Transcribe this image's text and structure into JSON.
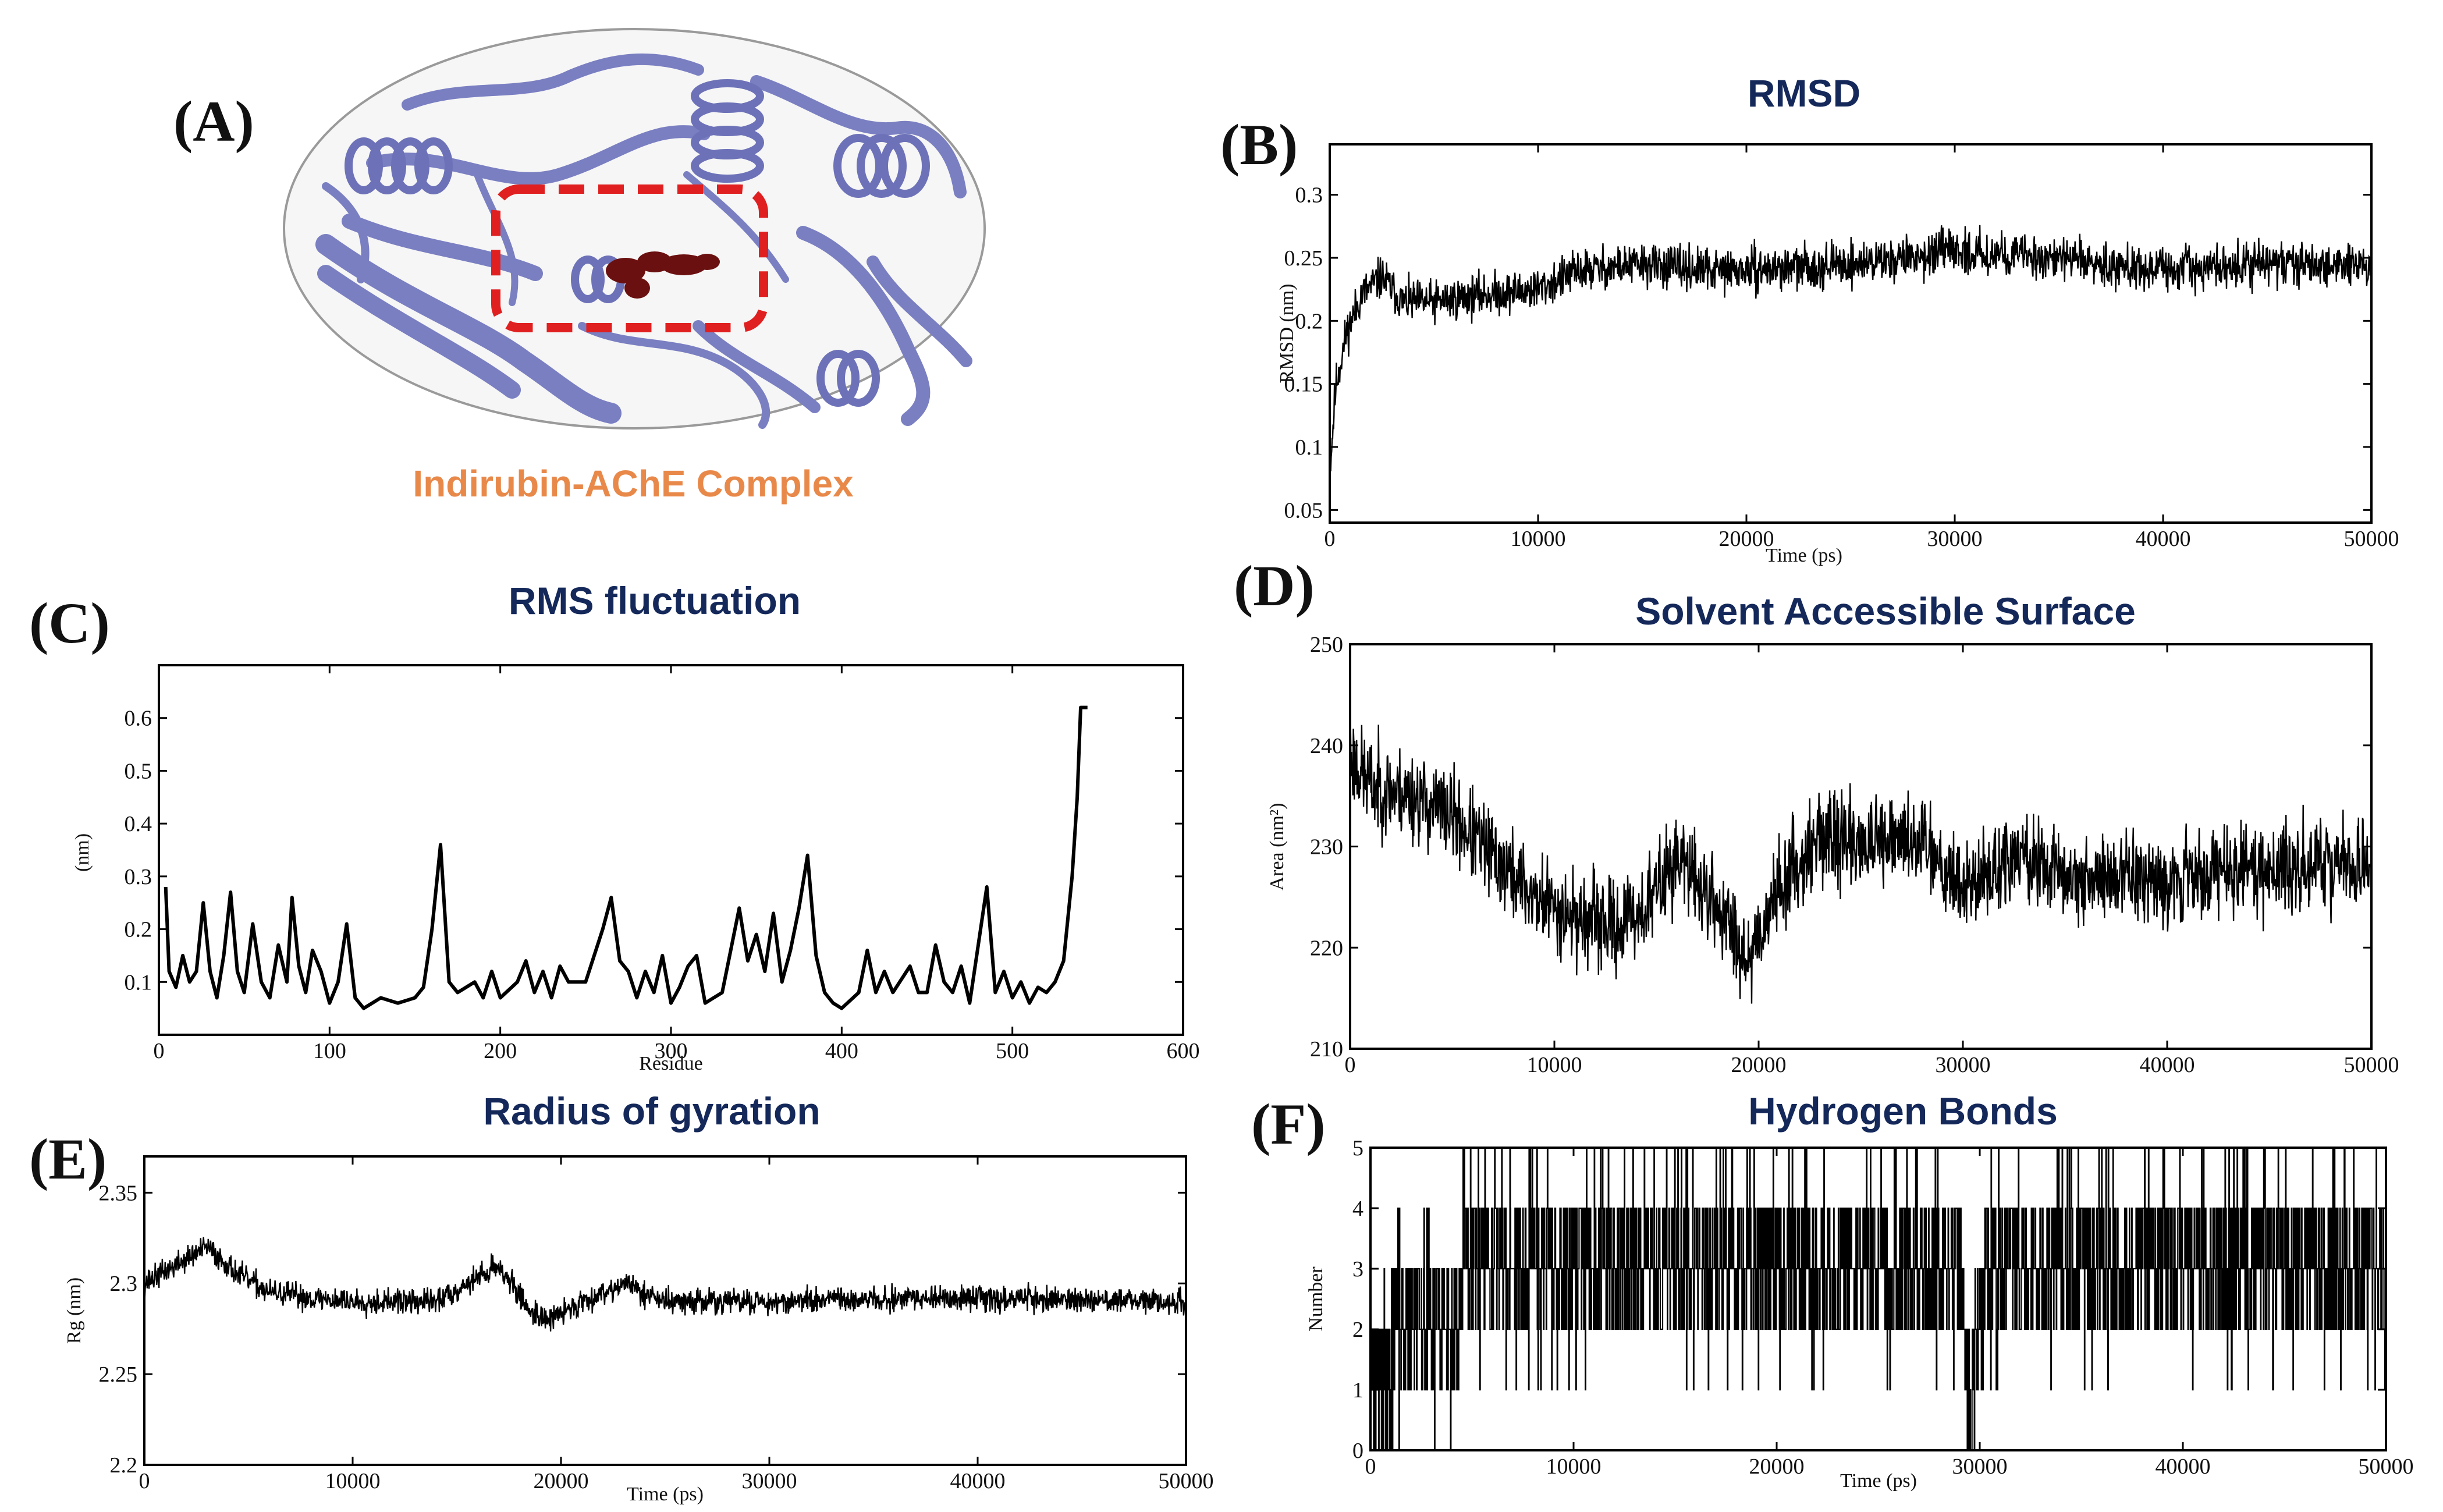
{
  "figure": {
    "panel_a": {
      "letter": "(A)",
      "caption": "Indirubin-AChE  Complex",
      "colors": {
        "protein": "#7a7fc2",
        "ligand": "#6b1010",
        "box": "#e02020",
        "caption": "#e8894a"
      }
    }
  },
  "chart_data": [
    {
      "id": "B",
      "letter": "(B)",
      "type": "line",
      "title": "RMSD",
      "xlabel": "Time (ps)",
      "ylabel": "RMSD (nm)",
      "xlim": [
        0,
        50000
      ],
      "ylim": [
        0.04,
        0.34
      ],
      "xticks": [
        0,
        10000,
        20000,
        30000,
        40000,
        50000
      ],
      "yticks": [
        0.05,
        0.1,
        0.15,
        0.2,
        0.25,
        0.3
      ],
      "ytick_labels": [
        "0.05",
        "0.1",
        "0.15",
        "0.2",
        "0.25",
        "0.3"
      ],
      "noise": 0.012,
      "seed": 11,
      "x": [
        0,
        300,
        800,
        1500,
        2500,
        3500,
        5000,
        7000,
        10000,
        12000,
        15000,
        18000,
        20000,
        25000,
        30000,
        35000,
        40000,
        45000,
        50000
      ],
      "y": [
        0.08,
        0.15,
        0.19,
        0.22,
        0.235,
        0.215,
        0.215,
        0.22,
        0.225,
        0.24,
        0.245,
        0.24,
        0.24,
        0.245,
        0.255,
        0.25,
        0.24,
        0.245,
        0.245
      ]
    },
    {
      "id": "C",
      "letter": "(C)",
      "type": "line",
      "title": "RMS fluctuation",
      "xlabel": "Residue",
      "ylabel": "(nm)",
      "xlim": [
        0,
        600
      ],
      "ylim": [
        0,
        0.7
      ],
      "xticks": [
        0,
        100,
        200,
        300,
        400,
        500,
        600
      ],
      "yticks": [
        0.1,
        0.2,
        0.3,
        0.4,
        0.5,
        0.6
      ],
      "ytick_labels": [
        "0.1",
        "0.2",
        "0.3",
        "0.4",
        "0.5",
        "0.6"
      ],
      "noise": 0,
      "seed": 0,
      "x": [
        4,
        6,
        10,
        14,
        18,
        22,
        26,
        30,
        34,
        38,
        42,
        46,
        50,
        55,
        60,
        65,
        70,
        75,
        78,
        82,
        86,
        90,
        95,
        100,
        105,
        110,
        115,
        120,
        130,
        140,
        150,
        155,
        160,
        165,
        170,
        175,
        185,
        190,
        195,
        200,
        210,
        215,
        220,
        225,
        230,
        235,
        240,
        250,
        260,
        265,
        270,
        275,
        280,
        285,
        290,
        295,
        300,
        305,
        310,
        315,
        320,
        325,
        330,
        340,
        345,
        350,
        355,
        360,
        365,
        370,
        375,
        380,
        385,
        390,
        395,
        400,
        410,
        415,
        420,
        425,
        430,
        440,
        445,
        450,
        455,
        460,
        465,
        470,
        475,
        480,
        485,
        490,
        495,
        500,
        505,
        510,
        515,
        520,
        525,
        530,
        535,
        538,
        540,
        542,
        544
      ],
      "y": [
        0.28,
        0.12,
        0.09,
        0.15,
        0.1,
        0.12,
        0.25,
        0.12,
        0.07,
        0.15,
        0.27,
        0.12,
        0.08,
        0.21,
        0.1,
        0.07,
        0.17,
        0.1,
        0.26,
        0.13,
        0.08,
        0.16,
        0.12,
        0.06,
        0.1,
        0.21,
        0.07,
        0.05,
        0.07,
        0.06,
        0.07,
        0.09,
        0.2,
        0.36,
        0.1,
        0.08,
        0.1,
        0.07,
        0.12,
        0.07,
        0.1,
        0.14,
        0.08,
        0.12,
        0.07,
        0.13,
        0.1,
        0.1,
        0.2,
        0.26,
        0.14,
        0.12,
        0.07,
        0.12,
        0.08,
        0.15,
        0.06,
        0.09,
        0.13,
        0.15,
        0.06,
        0.07,
        0.08,
        0.24,
        0.14,
        0.19,
        0.12,
        0.23,
        0.1,
        0.16,
        0.24,
        0.34,
        0.15,
        0.08,
        0.06,
        0.05,
        0.08,
        0.16,
        0.08,
        0.12,
        0.08,
        0.13,
        0.08,
        0.08,
        0.17,
        0.1,
        0.08,
        0.13,
        0.06,
        0.17,
        0.28,
        0.08,
        0.12,
        0.07,
        0.1,
        0.06,
        0.09,
        0.08,
        0.1,
        0.14,
        0.3,
        0.45,
        0.62,
        0.62,
        0.62
      ]
    },
    {
      "id": "D",
      "letter": "(D)",
      "type": "line",
      "title": "Solvent Accessible  Surface",
      "xlabel": "",
      "ylabel": "Area (nm²)",
      "xlim": [
        0,
        50000
      ],
      "ylim": [
        210,
        250
      ],
      "xticks": [
        0,
        10000,
        20000,
        30000,
        40000,
        50000
      ],
      "yticks": [
        210,
        220,
        230,
        240,
        250
      ],
      "ytick_labels": [
        "210",
        "220",
        "230",
        "240",
        "250"
      ],
      "noise": 3.2,
      "seed": 23,
      "x": [
        0,
        1000,
        3000,
        5000,
        7000,
        9000,
        11000,
        13000,
        14500,
        16000,
        18000,
        19500,
        21000,
        23000,
        26000,
        28000,
        30000,
        33000,
        35000,
        40000,
        45000,
        50000
      ],
      "y": [
        239,
        236,
        235,
        233,
        229,
        225,
        223,
        222,
        224,
        229,
        224,
        219,
        226,
        231,
        230,
        231,
        226,
        229,
        227,
        227,
        228,
        228
      ]
    },
    {
      "id": "E",
      "letter": "(E)",
      "type": "line",
      "title": "Radius of gyration",
      "xlabel": "Time (ps)",
      "ylabel": "Rg (nm)",
      "xlim": [
        0,
        50000
      ],
      "ylim": [
        2.2,
        2.37
      ],
      "xticks": [
        0,
        10000,
        20000,
        30000,
        40000,
        50000
      ],
      "yticks": [
        2.2,
        2.25,
        2.3,
        2.35
      ],
      "ytick_labels": [
        "2.2",
        "2.25",
        "2.3",
        "2.35"
      ],
      "noise": 0.005,
      "seed": 37,
      "x": [
        0,
        1500,
        3000,
        4500,
        6000,
        8000,
        10000,
        12000,
        14000,
        15500,
        17000,
        18500,
        19500,
        21000,
        23000,
        25000,
        30000,
        40000,
        50000
      ],
      "y": [
        2.3,
        2.31,
        2.32,
        2.305,
        2.295,
        2.292,
        2.29,
        2.29,
        2.29,
        2.3,
        2.31,
        2.285,
        2.28,
        2.29,
        2.3,
        2.29,
        2.29,
        2.292,
        2.29
      ]
    },
    {
      "id": "F",
      "letter": "(F)",
      "type": "line",
      "title": "Hydrogen Bonds",
      "xlabel": "Time (ps)",
      "ylabel": "Number",
      "xlim": [
        0,
        50000
      ],
      "ylim": [
        0,
        5
      ],
      "xticks": [
        0,
        10000,
        20000,
        30000,
        40000,
        50000
      ],
      "yticks": [
        0,
        1,
        2,
        3,
        4,
        5
      ],
      "ytick_labels": [
        "0",
        "1",
        "2",
        "3",
        "4",
        "5"
      ],
      "step": true,
      "seed": 53,
      "x": [
        0,
        2000,
        7000,
        15000,
        25000,
        29000,
        29500,
        30500,
        35000,
        50000
      ],
      "y": [
        1,
        2,
        3,
        3,
        3,
        3,
        1,
        3,
        3,
        3
      ]
    }
  ]
}
